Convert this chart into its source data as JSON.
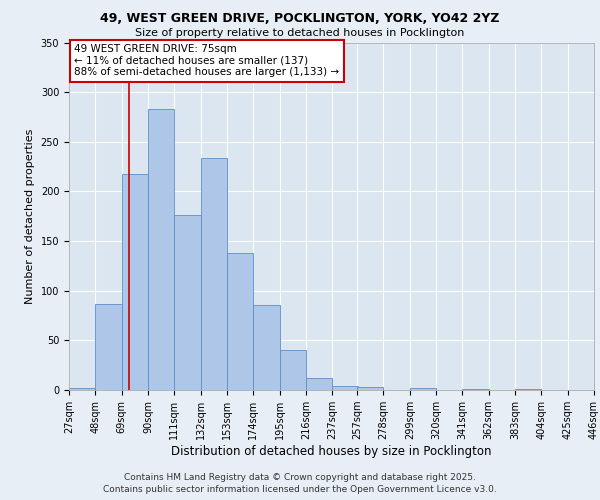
{
  "title": "49, WEST GREEN DRIVE, POCKLINGTON, YORK, YO42 2YZ",
  "subtitle": "Size of property relative to detached houses in Pocklington",
  "xlabel": "Distribution of detached houses by size in Pocklington",
  "ylabel": "Number of detached properties",
  "bin_edges": [
    27,
    48,
    69,
    90,
    111,
    132,
    153,
    174,
    195,
    216,
    237,
    257,
    278,
    299,
    320,
    341,
    362,
    383,
    404,
    425,
    446
  ],
  "bar_heights": [
    2,
    87,
    218,
    283,
    176,
    234,
    138,
    86,
    40,
    12,
    4,
    3,
    0,
    2,
    0,
    1,
    0,
    1,
    0,
    0
  ],
  "bar_color": "#aec6e8",
  "bar_edge_color": "#5b8fc9",
  "vline_x": 75,
  "vline_color": "#cc0000",
  "annotation_text": "49 WEST GREEN DRIVE: 75sqm\n← 11% of detached houses are smaller (137)\n88% of semi-detached houses are larger (1,133) →",
  "annotation_box_color": "#ffffff",
  "annotation_box_edge": "#cc0000",
  "ylim": [
    0,
    350
  ],
  "yticks": [
    0,
    50,
    100,
    150,
    200,
    250,
    300,
    350
  ],
  "bg_color": "#e8eef5",
  "axes_bg_color": "#dce6f0",
  "grid_color": "#ffffff",
  "footer_line1": "Contains HM Land Registry data © Crown copyright and database right 2025.",
  "footer_line2": "Contains public sector information licensed under the Open Government Licence v3.0.",
  "title_fontsize": 9,
  "subtitle_fontsize": 8,
  "xlabel_fontsize": 8.5,
  "ylabel_fontsize": 8,
  "tick_fontsize": 7,
  "annotation_fontsize": 7.5,
  "footer_fontsize": 6.5
}
